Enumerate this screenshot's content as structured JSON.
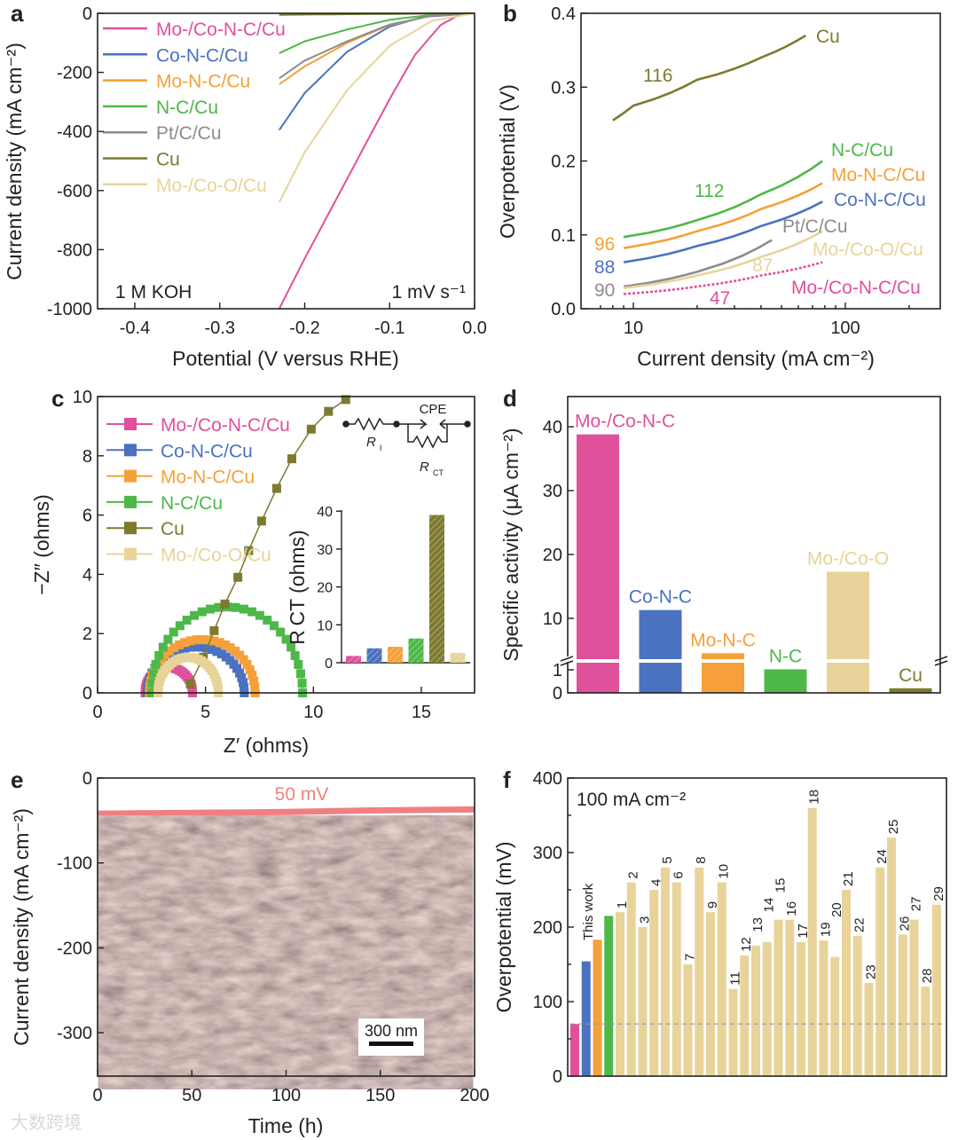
{
  "watermark": "大数跨境",
  "chart_data": [
    {
      "panel": "a",
      "type": "line",
      "xlabel": "Potential (V versus RHE)",
      "ylabel": "Current density (mA cm⁻²)",
      "xlim": [
        -0.45,
        0
      ],
      "ylim": [
        -1000,
        0
      ],
      "xticks": [
        -0.4,
        -0.3,
        -0.2,
        -0.1,
        0.0
      ],
      "xtick_labels": [
        "-0.4",
        "-0.3",
        "-0.2",
        "-0.1",
        "0.0"
      ],
      "yticks": [
        0,
        -200,
        -400,
        -600,
        -800,
        -1000
      ],
      "ytick_labels": [
        "0",
        "-200",
        "-400",
        "-600",
        "-800",
        "-1000"
      ],
      "annotations": [
        "1 M KOH",
        "1 mV s⁻¹"
      ],
      "series": [
        {
          "name": "Mo-/Co-N-C/Cu",
          "color": "#e0509b",
          "points": [
            [
              -0.23,
              -1000
            ],
            [
              -0.2,
              -830
            ],
            [
              -0.15,
              -560
            ],
            [
              -0.1,
              -290
            ],
            [
              -0.07,
              -140
            ],
            [
              -0.04,
              -40
            ],
            [
              -0.02,
              -8
            ],
            [
              0,
              0
            ]
          ]
        },
        {
          "name": "Co-N-C/Cu",
          "color": "#4a72c0",
          "points": [
            [
              -0.23,
              -395
            ],
            [
              -0.2,
              -270
            ],
            [
              -0.15,
              -130
            ],
            [
              -0.1,
              -45
            ],
            [
              -0.06,
              -12
            ],
            [
              0,
              0
            ]
          ]
        },
        {
          "name": "Mo-N-C/Cu",
          "color": "#f5a03a",
          "points": [
            [
              -0.23,
              -240
            ],
            [
              -0.2,
              -180
            ],
            [
              -0.15,
              -100
            ],
            [
              -0.1,
              -40
            ],
            [
              -0.05,
              -8
            ],
            [
              0,
              0
            ]
          ]
        },
        {
          "name": "N-C/Cu",
          "color": "#4db848",
          "points": [
            [
              -0.23,
              -135
            ],
            [
              -0.2,
              -95
            ],
            [
              -0.15,
              -55
            ],
            [
              -0.1,
              -22
            ],
            [
              -0.05,
              -5
            ],
            [
              0,
              0
            ]
          ]
        },
        {
          "name": "Pt/C/Cu",
          "color": "#8c8c8c",
          "points": [
            [
              -0.23,
              -220
            ],
            [
              -0.2,
              -160
            ],
            [
              -0.15,
              -95
            ],
            [
              -0.1,
              -38
            ],
            [
              -0.05,
              -8
            ],
            [
              0,
              0
            ]
          ]
        },
        {
          "name": "Cu",
          "color": "#7d7a30",
          "points": [
            [
              -0.23,
              -5
            ],
            [
              -0.1,
              -2
            ],
            [
              0,
              0
            ]
          ]
        },
        {
          "name": "Mo-/Co-O/Cu",
          "color": "#e8d49a",
          "points": [
            [
              -0.23,
              -640
            ],
            [
              -0.2,
              -470
            ],
            [
              -0.15,
              -260
            ],
            [
              -0.1,
              -110
            ],
            [
              -0.05,
              -25
            ],
            [
              0,
              0
            ]
          ]
        }
      ]
    },
    {
      "panel": "b",
      "type": "line",
      "xscale": "log",
      "xlabel": "Current density (mA cm⁻²)",
      "ylabel": "Overpotential (V)",
      "xlim": [
        6,
        260
      ],
      "ylim": [
        0,
        0.4
      ],
      "xticks": [
        10,
        100
      ],
      "xtick_labels": [
        "10",
        "100"
      ],
      "yticks": [
        0,
        0.1,
        0.2,
        0.3,
        0.4
      ],
      "ytick_labels": [
        "0.0",
        "0.1",
        "0.2",
        "0.3",
        "0.4"
      ],
      "series": [
        {
          "name": "Cu",
          "color": "#7d7a30",
          "tafel": "116",
          "points": [
            [
              8,
              0.255
            ],
            [
              10,
              0.275
            ],
            [
              20,
              0.31
            ],
            [
              40,
              0.34
            ],
            [
              65,
              0.37
            ]
          ]
        },
        {
          "name": "N-C/Cu",
          "color": "#4db848",
          "tafel": "112",
          "points": [
            [
              9,
              0.097
            ],
            [
              20,
              0.12
            ],
            [
              40,
              0.155
            ],
            [
              78,
              0.2
            ]
          ]
        },
        {
          "name": "Mo-N-C/Cu",
          "color": "#f5a03a",
          "tafel": "96",
          "points": [
            [
              9,
              0.082
            ],
            [
              20,
              0.105
            ],
            [
              40,
              0.135
            ],
            [
              78,
              0.17
            ]
          ]
        },
        {
          "name": "Co-N-C/Cu",
          "color": "#4a72c0",
          "tafel": "88",
          "points": [
            [
              9,
              0.063
            ],
            [
              20,
              0.085
            ],
            [
              40,
              0.112
            ],
            [
              78,
              0.145
            ]
          ]
        },
        {
          "name": "Pt/C/Cu",
          "color": "#8c8c8c",
          "tafel": "90",
          "points": [
            [
              9,
              0.03
            ],
            [
              20,
              0.05
            ],
            [
              45,
              0.093
            ]
          ]
        },
        {
          "name": "Mo-/Co-O/Cu",
          "color": "#e8d49a",
          "tafel": "87",
          "points": [
            [
              9,
              0.028
            ],
            [
              20,
              0.045
            ],
            [
              40,
              0.07
            ],
            [
              78,
              0.105
            ]
          ]
        },
        {
          "name": "Mo-/Co-N-C/Cu",
          "color": "#e0509b",
          "tafel": "47",
          "points": [
            [
              9,
              0.02
            ],
            [
              20,
              0.03
            ],
            [
              40,
              0.045
            ],
            [
              78,
              0.063
            ]
          ]
        }
      ]
    },
    {
      "panel": "c",
      "type": "scatter",
      "xlabel": "Z′ (ohms)",
      "ylabel": "−Z″ (ohms)",
      "xlim": [
        0,
        17.5
      ],
      "ylim": [
        0,
        10
      ],
      "xticks": [
        0,
        5,
        10,
        15
      ],
      "xtick_labels": [
        "0",
        "5",
        "10",
        "15"
      ],
      "yticks": [
        0,
        2,
        4,
        6,
        8,
        10
      ],
      "ytick_labels": [
        "0",
        "2",
        "4",
        "6",
        "8",
        "10"
      ],
      "circuit": {
        "labels": [
          "CPE",
          "R",
          "I",
          "R",
          "CT"
        ]
      },
      "series": [
        {
          "name": "Mo-/Co-N-C/Cu",
          "color": "#e0509b",
          "arc": [
            2.2,
            4.4,
            0.85
          ]
        },
        {
          "name": "Co-N-C/Cu",
          "color": "#4a72c0",
          "arc": [
            2.3,
            6.8,
            1.55
          ]
        },
        {
          "name": "Mo-N-C/Cu",
          "color": "#f5a03a",
          "arc": [
            2.4,
            7.3,
            1.8
          ]
        },
        {
          "name": "N-C/Cu",
          "color": "#4db848",
          "arc": [
            2.5,
            9.5,
            2.9
          ]
        },
        {
          "name": "Cu",
          "color": "#7d7a30",
          "points": [
            [
              4.3,
              0.3
            ],
            [
              4.9,
              1.2
            ],
            [
              5.4,
              2.1
            ],
            [
              5.9,
              3.0
            ],
            [
              6.5,
              3.9
            ],
            [
              7.0,
              4.8
            ],
            [
              7.6,
              5.8
            ],
            [
              8.3,
              6.9
            ],
            [
              9.0,
              7.9
            ],
            [
              9.9,
              8.9
            ],
            [
              10.7,
              9.5
            ],
            [
              11.5,
              9.9
            ]
          ]
        },
        {
          "name": "Mo-/Co-O/Cu",
          "color": "#e8d49a",
          "arc": [
            2.8,
            5.6,
            1.2
          ]
        }
      ],
      "inset": {
        "type": "bar",
        "ylabel": "R CT (ohms)",
        "yticks": [
          0,
          10,
          20,
          30,
          40
        ],
        "ytick_labels": [
          "0",
          "10",
          "20",
          "30",
          "40"
        ],
        "ylim": [
          0,
          40
        ],
        "values": [
          1.8,
          3.8,
          4.2,
          6.4,
          39,
          2.6
        ],
        "colors": [
          "#e0509b",
          "#4a72c0",
          "#f5a03a",
          "#4db848",
          "#7d7a30",
          "#e8d49a"
        ]
      }
    },
    {
      "panel": "d",
      "type": "bar",
      "ylabel": "Specific activity (μA cm⁻²)",
      "ylim": [
        0,
        45
      ],
      "axis_break": [
        1,
        10
      ],
      "yticks": [
        0,
        1,
        10,
        20,
        30,
        40
      ],
      "ytick_labels": [
        "0",
        "1",
        "10",
        "20",
        "30",
        "40"
      ],
      "categories": [
        "Mo-/Co-N-C",
        "Co-N-C",
        "Mo-N-C",
        "N-C",
        "Mo-/Co-O",
        "Cu"
      ],
      "values": [
        38.8,
        11.3,
        4.5,
        1.1,
        17.3,
        0.2
      ],
      "colors": [
        "#e0509b",
        "#4a72c0",
        "#f5a03a",
        "#4db848",
        "#e8d49a",
        "#7d7a30"
      ]
    },
    {
      "panel": "e",
      "type": "line",
      "xlabel": "Time (h)",
      "ylabel": "Current density (mA cm⁻²)",
      "xlim": [
        0,
        200
      ],
      "ylim": [
        -350,
        0
      ],
      "xticks": [
        0,
        50,
        100,
        150,
        200
      ],
      "xtick_labels": [
        "0",
        "50",
        "100",
        "150",
        "200"
      ],
      "yticks": [
        0,
        -100,
        -200,
        -300
      ],
      "ytick_labels": [
        "0",
        "-100",
        "-200",
        "-300"
      ],
      "annotation": "50 mV",
      "scale_bar": "300 nm",
      "series": [
        {
          "name": "stability",
          "color": "#f08080",
          "points": [
            [
              0,
              -42
            ],
            [
              50,
              -41
            ],
            [
              100,
              -40
            ],
            [
              150,
              -38
            ],
            [
              200,
              -37
            ]
          ]
        }
      ]
    },
    {
      "panel": "f",
      "type": "bar",
      "ylabel": "Overpotential (mV)",
      "ylim": [
        0,
        400
      ],
      "annotation": "100 mA cm⁻²",
      "this_work_label": "This work",
      "reference_line": 70,
      "yticks": [
        0,
        100,
        200,
        300,
        400
      ],
      "ytick_labels": [
        "0",
        "100",
        "200",
        "300",
        "400"
      ],
      "categories": [
        "",
        "",
        "",
        "",
        "1",
        "2",
        "3",
        "4",
        "5",
        "6",
        "7",
        "8",
        "9",
        "10",
        "11",
        "12",
        "13",
        "14",
        "15",
        "16",
        "17",
        "18",
        "19",
        "20",
        "21",
        "22",
        "23",
        "24",
        "25",
        "26",
        "27",
        "28",
        "29"
      ],
      "values": [
        70,
        154,
        183,
        215,
        220,
        260,
        200,
        250,
        280,
        260,
        150,
        280,
        220,
        260,
        117,
        162,
        175,
        180,
        210,
        210,
        180,
        360,
        182,
        160,
        250,
        188,
        125,
        280,
        320,
        190,
        210,
        120,
        230
      ],
      "colors": [
        "#e0509b",
        "#4a72c0",
        "#f5a03a",
        "#4db848"
      ],
      "default_color": "#e8d49a"
    }
  ]
}
